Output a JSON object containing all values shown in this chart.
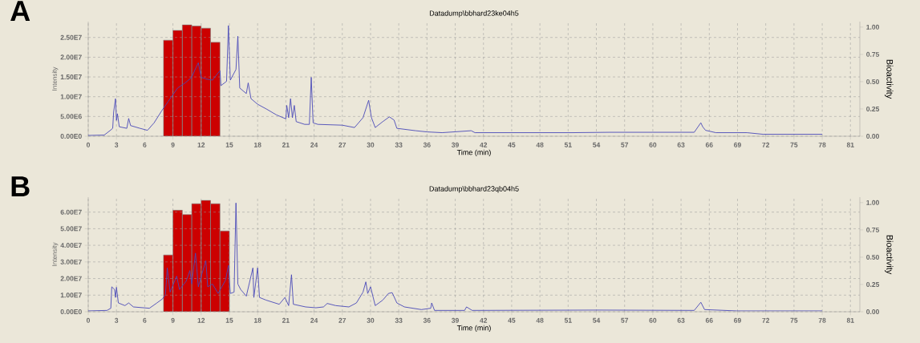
{
  "chart_data": [
    {
      "type": "line",
      "title": "Datadump\\bbhard23ke04h5",
      "annotations": [
        "A"
      ],
      "xlabel": "Time (min)",
      "ylabel": "Intensity",
      "y2label": "Bioactivity",
      "grid": true,
      "xlim": [
        0,
        82
      ],
      "xticks": [
        0,
        3,
        6,
        9,
        12,
        15,
        18,
        21,
        24,
        27,
        30,
        33,
        36,
        39,
        42,
        45,
        48,
        51,
        54,
        57,
        60,
        63,
        66,
        69,
        72,
        75,
        78,
        81
      ],
      "ylim": [
        0,
        29000000.0
      ],
      "yticks": [
        {
          "value": 0,
          "label": "0.00E0"
        },
        {
          "value": 5000000.0,
          "label": "5.00E6"
        },
        {
          "value": 10000000.0,
          "label": "1.00E7"
        },
        {
          "value": 15000000.0,
          "label": "1.50E7"
        },
        {
          "value": 20000000.0,
          "label": "2.00E7"
        },
        {
          "value": 25000000.0,
          "label": "2.50E7"
        }
      ],
      "y2lim": [
        0,
        1.05
      ],
      "y2ticks": [
        {
          "value": 0,
          "label": "0.00"
        },
        {
          "value": 0.25,
          "label": "0.25"
        },
        {
          "value": 0.5,
          "label": "0.50"
        },
        {
          "value": 0.75,
          "label": "0.75"
        },
        {
          "value": 1,
          "label": "1.00"
        }
      ],
      "series": [
        {
          "type": "bar",
          "axis": "y2",
          "color": "#cc0000",
          "x": [
            8.5,
            9.5,
            10.5,
            11.5,
            12.5,
            13.5
          ],
          "values": [
            0.88,
            0.97,
            1.02,
            1.01,
            0.99,
            0.86
          ]
        },
        {
          "type": "line",
          "color": "#4a4ab8",
          "x": [
            0,
            1.7,
            2.3,
            2.6,
            2.7,
            2.9,
            3.0,
            3.1,
            3.3,
            4.1,
            4.3,
            4.5,
            5.5,
            6.3,
            7.0,
            7.8,
            8.5,
            9.5,
            10.3,
            11,
            11.3,
            11.7,
            12,
            12.5,
            13.2,
            14,
            14.1,
            14.7,
            14.9,
            15.1,
            15.7,
            15.9,
            16.1,
            16.8,
            17,
            17.3,
            18,
            19,
            20,
            21,
            21.1,
            21.3,
            21.5,
            21.7,
            21.9,
            22.1,
            23,
            23.5,
            23.7,
            23.9,
            24.4,
            27.0,
            28.3,
            29.2,
            29.8,
            30.0,
            30.1,
            30.5,
            31.3,
            32.0,
            32.5,
            32.8,
            34.8,
            36,
            37.6,
            40.7,
            41.1,
            45.7,
            51.4,
            55.4,
            64.4,
            65.1,
            65.3,
            65.6,
            66.7,
            70,
            71.7,
            78
          ],
          "values": [
            200000.0,
            300000.0,
            1400000.0,
            2000000.0,
            6100000.0,
            9500000.0,
            4000000.0,
            5700000.0,
            2400000.0,
            2000000.0,
            4500000.0,
            2700000.0,
            2000000.0,
            1500000.0,
            3400000.0,
            6400000.0,
            8800000.0,
            12200000.0,
            13500000.0,
            14900000.0,
            16600000.0,
            18600000.0,
            14900000.0,
            14500000.0,
            14200000.0,
            16600000.0,
            12800000.0,
            13900000.0,
            28000000.0,
            14200000.0,
            16900000.0,
            25300000.0,
            12200000.0,
            10800000.0,
            13500000.0,
            9500000.0,
            8100000.0,
            6800000.0,
            5400000.0,
            4400000.0,
            7800000.0,
            4700000.0,
            9500000.0,
            4700000.0,
            7800000.0,
            3700000.0,
            3000000.0,
            3000000.0,
            14900000.0,
            3400000.0,
            3000000.0,
            2800000.0,
            2200000.0,
            4700000.0,
            9100000.0,
            6100000.0,
            4700000.0,
            2200000.0,
            3700000.0,
            4900000.0,
            4100000.0,
            2000000.0,
            1400000.0,
            1100000.0,
            900000.0,
            1400000.0,
            900000.0,
            900000.0,
            900000.0,
            1000000.0,
            1000000.0,
            3400000.0,
            2400000.0,
            1500000.0,
            900000.0,
            900000.0,
            500000.0,
            500000.0
          ]
        }
      ]
    },
    {
      "type": "line",
      "title": "Datadump\\bbhard23qb04h5",
      "annotations": [
        "B"
      ],
      "xlabel": "Time (min)",
      "ylabel": "Intensity",
      "y2label": "Bioactivity",
      "grid": true,
      "xlim": [
        0,
        82
      ],
      "xticks": [
        0,
        3,
        6,
        9,
        12,
        15,
        18,
        21,
        24,
        27,
        30,
        33,
        36,
        39,
        42,
        45,
        48,
        51,
        54,
        57,
        60,
        63,
        66,
        69,
        72,
        75,
        78,
        81
      ],
      "ylim": [
        0,
        69000000.0
      ],
      "yticks": [
        {
          "value": 0,
          "label": "0.00E0"
        },
        {
          "value": 10000000.0,
          "label": "1.00E7"
        },
        {
          "value": 20000000.0,
          "label": "2.00E7"
        },
        {
          "value": 30000000.0,
          "label": "3.00E7"
        },
        {
          "value": 40000000.0,
          "label": "4.00E7"
        },
        {
          "value": 50000000.0,
          "label": "5.00E7"
        },
        {
          "value": 60000000.0,
          "label": "6.00E7"
        }
      ],
      "y2lim": [
        0,
        1.05
      ],
      "y2ticks": [
        {
          "value": 0,
          "label": "0.00"
        },
        {
          "value": 0.25,
          "label": "0.25"
        },
        {
          "value": 0.5,
          "label": "0.50"
        },
        {
          "value": 0.75,
          "label": "0.75"
        },
        {
          "value": 1,
          "label": "1.00"
        }
      ],
      "series": [
        {
          "type": "bar",
          "axis": "y2",
          "color": "#cc0000",
          "x": [
            8.5,
            9.5,
            10.5,
            11.5,
            12.5,
            13.5,
            14.5
          ],
          "values": [
            0.52,
            0.93,
            0.89,
            0.99,
            1.02,
            0.99,
            0.74
          ]
        },
        {
          "type": "line",
          "color": "#4a4ab8",
          "x": [
            0,
            2.0,
            2.4,
            2.5,
            2.8,
            2.9,
            3.0,
            3.2,
            3.9,
            4.3,
            4.8,
            6.5,
            7.3,
            7.9,
            8.2,
            8.4,
            8.7,
            9.4,
            9.7,
            10.4,
            10.8,
            11.0,
            11.4,
            11.7,
            12.1,
            12.5,
            12.7,
            13.2,
            13.8,
            14.6,
            14.9,
            15.1,
            15.5,
            15.7,
            15.9,
            16.2,
            16.8,
            17.5,
            17.6,
            18.0,
            18.2,
            18.9,
            20.3,
            20.9,
            21.3,
            21.6,
            21.8,
            23.1,
            24.2,
            25.0,
            25.4,
            26.3,
            27.7,
            28.5,
            29.2,
            29.5,
            29.7,
            30.0,
            30.5,
            31.3,
            31.9,
            32.3,
            32.8,
            33.6,
            35.4,
            36.4,
            36.5,
            36.8,
            40,
            40.2,
            40.8,
            54.3,
            64.4,
            65.1,
            65.5,
            68.9,
            78
          ],
          "values": [
            500000.0,
            800000.0,
            2100000.0,
            15000000.0,
            13400000.0,
            8600000.0,
            14700000.0,
            5300000.0,
            3700000.0,
            5300000.0,
            2900000.0,
            2100000.0,
            5300000.0,
            7800000.0,
            10200000.0,
            26400000.0,
            11800000.0,
            21500000.0,
            13400000.0,
            18300000.0,
            24800000.0,
            16700000.0,
            35300000.0,
            15000000.0,
            23100000.0,
            30700000.0,
            15000000.0,
            16700000.0,
            11000000.0,
            19100000.0,
            28000000.0,
            11000000.0,
            11800000.0,
            65500000.0,
            16700000.0,
            13400000.0,
            9400000.0,
            26400000.0,
            8600000.0,
            26400000.0,
            8600000.0,
            7000000.0,
            4500000.0,
            8600000.0,
            3700000.0,
            22300000.0,
            4500000.0,
            2900000.0,
            2400000.0,
            2900000.0,
            5000000.0,
            3700000.0,
            2900000.0,
            5300000.0,
            11800000.0,
            18000000.0,
            11000000.0,
            15000000.0,
            3700000.0,
            7000000.0,
            11000000.0,
            11500000.0,
            5300000.0,
            2900000.0,
            1300000.0,
            2100000.0,
            5300000.0,
            800000.0,
            800000.0,
            2900000.0,
            800000.0,
            1000000.0,
            800000.0,
            5700000.0,
            1300000.0,
            500000.0,
            500000.0
          ]
        }
      ]
    }
  ]
}
